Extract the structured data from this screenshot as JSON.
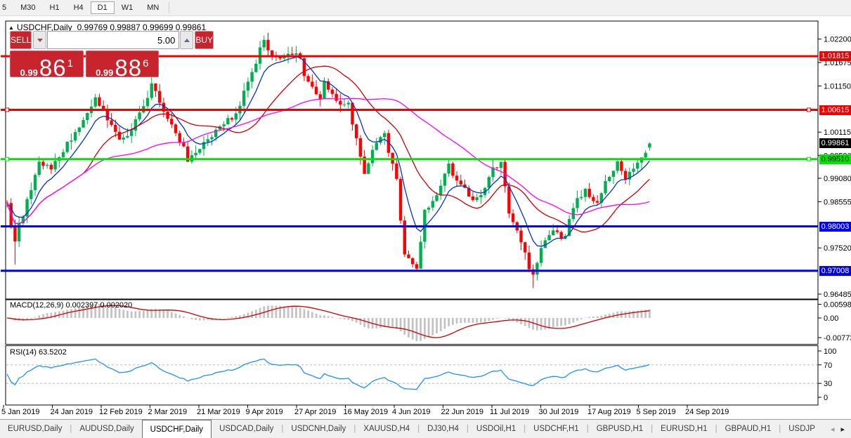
{
  "toolbar": {
    "timeframes": [
      "5",
      "M30",
      "H1",
      "H4",
      "D1",
      "W1",
      "MN"
    ],
    "active": "D1"
  },
  "title": {
    "collapse_icon": "▲",
    "symbol": "USDCHF,Daily",
    "ohlc": "0.99769 0.99887 0.99699 0.99861"
  },
  "trade_panel": {
    "sell_label": "SELL",
    "buy_label": "BUY",
    "lot_value": "5.00",
    "sell_price": {
      "prefix": "0.99",
      "big": "86",
      "sup": "1"
    },
    "buy_price": {
      "prefix": "0.99",
      "big": "88",
      "sup": "6"
    }
  },
  "price_axis": {
    "ticks": [
      "1.02200",
      "1.01675",
      "1.01150",
      "1.00115",
      "0.99590",
      "0.99080",
      "0.98555",
      "0.97520",
      "0.96485"
    ],
    "current": {
      "label": "0.99861",
      "price": 0.99861,
      "bg": "#000000",
      "fg": "#ffffff"
    }
  },
  "levels": [
    {
      "label": "1.01815",
      "price": 1.01815,
      "color": "#f00000",
      "text_color": "#ffffff",
      "handles": false
    },
    {
      "label": "1.00615",
      "price": 1.00615,
      "color": "#f00000",
      "text_color": "#ffffff",
      "handles": true
    },
    {
      "label": "0.99510",
      "price": 0.9951,
      "color": "#00e400",
      "text_color": "#000000",
      "handles": true
    },
    {
      "label": "0.98003",
      "price": 0.98003,
      "color": "#0000f0",
      "text_color": "#ffffff",
      "handles": false
    },
    {
      "label": "0.97008",
      "price": 0.97008,
      "color": "#0000f0",
      "text_color": "#ffffff",
      "handles": false
    }
  ],
  "macd_pane": {
    "label": "MACD(12,26,9) 0.002397 0.002020",
    "axis_ticks": [
      "0.005986",
      "0.00",
      "-0.007737"
    ]
  },
  "rsi_pane": {
    "label": "RSI(14) 63.5202",
    "axis_ticks": [
      "100",
      "70",
      "30",
      "0"
    ],
    "guide_levels": [
      70,
      30
    ]
  },
  "date_axis": [
    "5 Jan 2019",
    "24 Jan 2019",
    "12 Feb 2019",
    "2 Mar 2019",
    "21 Mar 2019",
    "9 Apr 2019",
    "27 Apr 2019",
    "16 May 2019",
    "4 Jun 2019",
    "22 Jun 2019",
    "11 Jul 2019",
    "30 Jul 2019",
    "17 Aug 2019",
    "5 Sep 2019",
    "24 Sep 2019"
  ],
  "tabs": {
    "items": [
      "EURUSD,Daily",
      "AUDUSD,Daily",
      "USDCHF,Daily",
      "USDCAD,Daily",
      "USDCNH,Daily",
      "XAUUSD,H4",
      "DJ30,H4",
      "USDOil,H1",
      "USDCHF,H1",
      "GBPUSD,H1",
      "EURUSD,H1",
      "GBPAUD,H1",
      "USDJP"
    ],
    "active": "USDCHF,Daily",
    "scroll_left": "◂",
    "scroll_right": "▸"
  },
  "chart_data": {
    "type": "candlestick",
    "symbol": "USDCHF",
    "timeframe": "Daily",
    "bars": 161,
    "last_ohlc": {
      "open": 0.99769,
      "high": 0.99887,
      "low": 0.99699,
      "close": 0.99861
    },
    "close_path": [
      [
        0,
        0.985
      ],
      [
        2,
        0.9765
      ],
      [
        3,
        0.98
      ],
      [
        5,
        0.986
      ],
      [
        8,
        0.9948
      ],
      [
        11,
        0.9928
      ],
      [
        15,
        0.9985
      ],
      [
        18,
        1.002
      ],
      [
        22,
        1.0085
      ],
      [
        24,
        1.0058
      ],
      [
        28,
        1.0002
      ],
      [
        31,
        1.0015
      ],
      [
        36,
        1.0115
      ],
      [
        39,
        1.006
      ],
      [
        43,
        0.9992
      ],
      [
        45,
        0.9952
      ],
      [
        49,
        0.9985
      ],
      [
        52,
        1.0012
      ],
      [
        57,
        1.0052
      ],
      [
        60,
        1.013
      ],
      [
        64,
        1.0215
      ],
      [
        66,
        1.018
      ],
      [
        69,
        1.0175
      ],
      [
        72,
        1.0195
      ],
      [
        75,
        1.012
      ],
      [
        78,
        1.0092
      ],
      [
        79,
        1.0118
      ],
      [
        82,
        1.0085
      ],
      [
        85,
        1.007
      ],
      [
        87,
        1.0002
      ],
      [
        89,
        0.9922
      ],
      [
        92,
        0.9988
      ],
      [
        94,
        1.0005
      ],
      [
        97,
        0.99
      ],
      [
        99,
        0.9732
      ],
      [
        102,
        0.9706
      ],
      [
        104,
        0.9838
      ],
      [
        107,
        0.9868
      ],
      [
        110,
        0.9935
      ],
      [
        113,
        0.989
      ],
      [
        116,
        0.9856
      ],
      [
        118,
        0.987
      ],
      [
        121,
        0.9928
      ],
      [
        123,
        0.994
      ],
      [
        125,
        0.983
      ],
      [
        128,
        0.977
      ],
      [
        130,
        0.9702
      ],
      [
        131,
        0.9692
      ],
      [
        133,
        0.9755
      ],
      [
        136,
        0.979
      ],
      [
        139,
        0.9775
      ],
      [
        141,
        0.9845
      ],
      [
        144,
        0.988
      ],
      [
        147,
        0.9855
      ],
      [
        149,
        0.9895
      ],
      [
        152,
        0.9945
      ],
      [
        154,
        0.9906
      ],
      [
        156,
        0.993
      ],
      [
        158,
        0.995
      ],
      [
        160,
        0.9986
      ]
    ],
    "wick_overrides": {
      "2": {
        "low": 0.9715
      },
      "64": {
        "high": 1.0228
      },
      "131": {
        "low": 0.9662
      }
    },
    "y_axis": {
      "top_price": 1.022,
      "bottom_price": 0.96485
    },
    "moving_averages": [
      {
        "period": 8,
        "type": "ema",
        "color": "#0033cc"
      },
      {
        "period": 20,
        "type": "sma",
        "color": "#cc0000"
      },
      {
        "period": 45,
        "type": "sma",
        "color": "#ff00ff"
      }
    ],
    "indicators": {
      "macd": {
        "fast": 12,
        "slow": 26,
        "signal": 9,
        "value": 0.002397,
        "signal_value": 0.00202
      },
      "rsi": {
        "period": 14,
        "value": 63.5202
      }
    },
    "colors": {
      "bull": "#00b050",
      "bear": "#ff0000",
      "macd_hist": "#c3c3c3",
      "macd_signal": "#d00000",
      "rsi_line": "#1e90ff",
      "level_red": "#f00000",
      "level_green": "#00e400",
      "level_blue": "#0000f0"
    }
  }
}
